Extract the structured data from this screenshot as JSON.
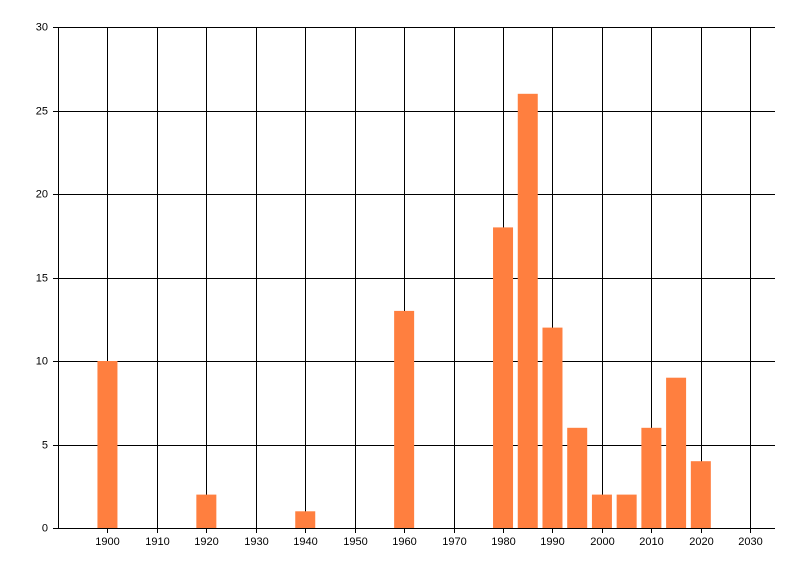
{
  "chart_data": {
    "type": "bar",
    "x": [
      1900,
      1920,
      1940,
      1960,
      1980,
      1985,
      1990,
      1995,
      2000,
      2005,
      2010,
      2015,
      2020
    ],
    "values": [
      10,
      2,
      1,
      13,
      18,
      26,
      12,
      6,
      2,
      2,
      6,
      9,
      4
    ],
    "color": "#ff7f3f",
    "xlim": [
      1890,
      2035
    ],
    "xticks": [
      1900,
      1910,
      1920,
      1930,
      1940,
      1950,
      1960,
      1970,
      1980,
      1990,
      2000,
      2010,
      2020,
      2030
    ],
    "ylim": [
      0,
      30
    ],
    "yticks": [
      0,
      5,
      10,
      15,
      20,
      25,
      30
    ],
    "grid": true
  }
}
